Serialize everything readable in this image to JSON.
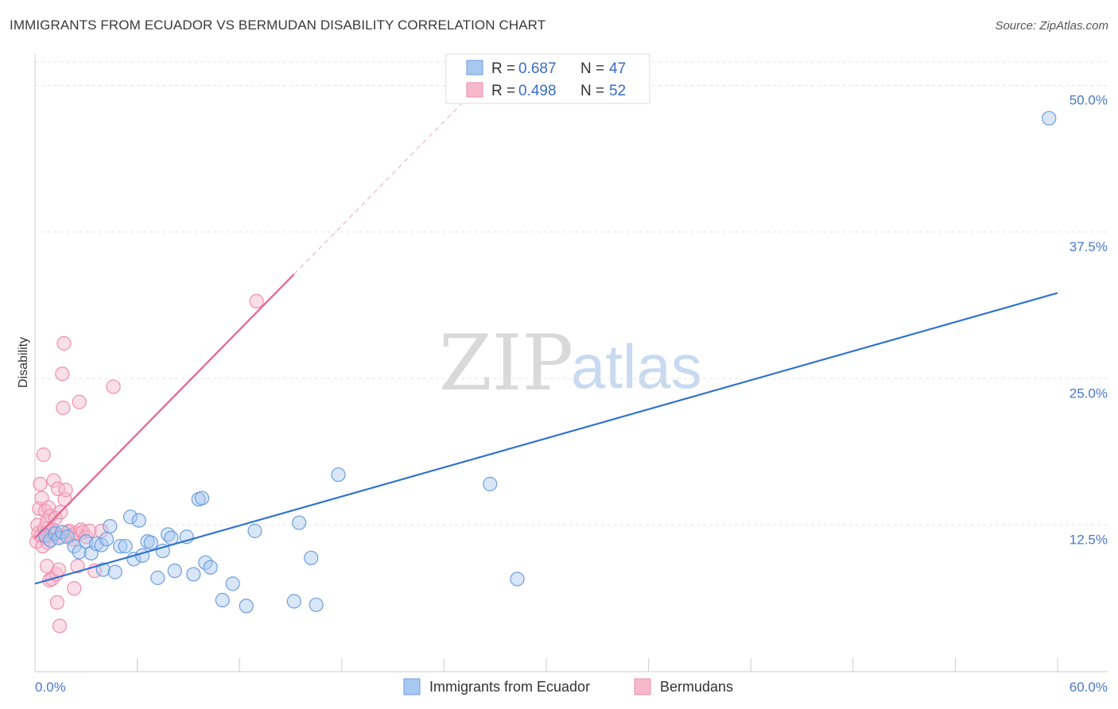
{
  "title": "IMMIGRANTS FROM ECUADOR VS BERMUDAN DISABILITY CORRELATION CHART",
  "source": "Source: ZipAtlas.com",
  "watermark": {
    "zip": "ZIP",
    "atlas": "atlas"
  },
  "colors": {
    "blue_fill": "#a9c8f0",
    "blue_stroke": "#6d9ee0",
    "blue_line": "#2f72d0",
    "pink_fill": "#f7b8cb",
    "pink_stroke": "#ee8fae",
    "pink_line": "#e8618c",
    "grid": "#e4e4e4",
    "axis_label": "#4a78c9"
  },
  "legend": {
    "rows": [
      {
        "r_label": "R = ",
        "r_value": "0.687",
        "n_label": "N = ",
        "n_value": "47"
      },
      {
        "r_label": "R = ",
        "r_value": "0.498",
        "n_label": "N = ",
        "n_value": "52"
      }
    ]
  },
  "chart_data": {
    "type": "scatter",
    "title": "IMMIGRANTS FROM ECUADOR VS BERMUDAN DISABILITY CORRELATION CHART",
    "xlabel": "",
    "ylabel": "Disability",
    "xlim": [
      0,
      60
    ],
    "ylim": [
      0,
      52
    ],
    "x_tick_labels": [
      "0.0%",
      "60.0%"
    ],
    "y_ticks": [
      12.5,
      25.0,
      37.5,
      50.0
    ],
    "y_tick_labels": [
      "12.5%",
      "25.0%",
      "37.5%",
      "50.0%"
    ],
    "legend_position": "top-center",
    "series": [
      {
        "name": "Immigrants from Ecuador",
        "color": "blue",
        "R": 0.687,
        "N": 47,
        "trend": {
          "x": [
            0,
            60
          ],
          "y": [
            7.5,
            32.3
          ],
          "dashed_extension": null
        },
        "points": [
          [
            0.6,
            11.6
          ],
          [
            0.9,
            11.2
          ],
          [
            1.2,
            11.8
          ],
          [
            1.4,
            11.4
          ],
          [
            1.6,
            11.9
          ],
          [
            1.9,
            11.5
          ],
          [
            2.3,
            10.7
          ],
          [
            2.6,
            10.2
          ],
          [
            3.0,
            11.1
          ],
          [
            3.3,
            10.1
          ],
          [
            3.6,
            10.9
          ],
          [
            3.9,
            10.8
          ],
          [
            4.0,
            8.7
          ],
          [
            4.2,
            11.3
          ],
          [
            4.4,
            12.4
          ],
          [
            4.7,
            8.5
          ],
          [
            5.0,
            10.7
          ],
          [
            5.3,
            10.7
          ],
          [
            5.6,
            13.2
          ],
          [
            5.8,
            9.6
          ],
          [
            6.1,
            12.9
          ],
          [
            6.3,
            9.9
          ],
          [
            6.6,
            11.1
          ],
          [
            6.8,
            11.0
          ],
          [
            7.2,
            8.0
          ],
          [
            7.5,
            10.3
          ],
          [
            7.8,
            11.7
          ],
          [
            8.0,
            11.4
          ],
          [
            8.2,
            8.6
          ],
          [
            8.9,
            11.5
          ],
          [
            9.3,
            8.3
          ],
          [
            9.6,
            14.7
          ],
          [
            9.8,
            14.8
          ],
          [
            10.0,
            9.3
          ],
          [
            10.3,
            8.9
          ],
          [
            11.0,
            6.1
          ],
          [
            11.6,
            7.5
          ],
          [
            12.4,
            5.6
          ],
          [
            12.9,
            12.0
          ],
          [
            15.2,
            6.0
          ],
          [
            15.5,
            12.7
          ],
          [
            16.2,
            9.7
          ],
          [
            16.5,
            5.7
          ],
          [
            17.8,
            16.8
          ],
          [
            26.7,
            16.0
          ],
          [
            28.3,
            7.9
          ],
          [
            59.5,
            47.2
          ]
        ]
      },
      {
        "name": "Bermudans",
        "color": "pink",
        "R": 0.498,
        "N": 52,
        "trend": {
          "x": [
            0,
            15.2
          ],
          "y": [
            11.4,
            33.9
          ],
          "dashed_extension": {
            "x": [
              15.2,
              25.0
            ],
            "y": [
              33.9,
              48.4
            ]
          }
        },
        "points": [
          [
            0.1,
            11.1
          ],
          [
            0.15,
            12.5
          ],
          [
            0.2,
            11.8
          ],
          [
            0.25,
            13.9
          ],
          [
            0.3,
            16.0
          ],
          [
            0.35,
            11.6
          ],
          [
            0.4,
            14.8
          ],
          [
            0.45,
            10.7
          ],
          [
            0.5,
            18.5
          ],
          [
            0.55,
            12.2
          ],
          [
            0.6,
            13.7
          ],
          [
            0.65,
            11.4
          ],
          [
            0.7,
            12.8
          ],
          [
            0.7,
            9.0
          ],
          [
            0.75,
            11.0
          ],
          [
            0.8,
            14.0
          ],
          [
            0.85,
            7.8
          ],
          [
            0.9,
            13.3
          ],
          [
            0.95,
            11.9
          ],
          [
            1.0,
            7.9
          ],
          [
            1.05,
            12.1
          ],
          [
            1.1,
            16.3
          ],
          [
            1.15,
            11.7
          ],
          [
            1.2,
            13.1
          ],
          [
            1.25,
            8.3
          ],
          [
            1.3,
            5.9
          ],
          [
            1.35,
            15.6
          ],
          [
            1.4,
            8.7
          ],
          [
            1.45,
            3.9
          ],
          [
            1.5,
            13.6
          ],
          [
            1.55,
            11.5
          ],
          [
            1.6,
            25.4
          ],
          [
            1.65,
            22.5
          ],
          [
            1.7,
            28.0
          ],
          [
            1.75,
            14.7
          ],
          [
            1.8,
            15.5
          ],
          [
            1.9,
            11.9
          ],
          [
            2.0,
            12.0
          ],
          [
            2.1,
            11.6
          ],
          [
            2.2,
            11.3
          ],
          [
            2.3,
            7.1
          ],
          [
            2.4,
            11.8
          ],
          [
            2.5,
            9.0
          ],
          [
            2.6,
            23.0
          ],
          [
            2.7,
            12.1
          ],
          [
            2.8,
            11.9
          ],
          [
            3.0,
            11.5
          ],
          [
            3.2,
            12.0
          ],
          [
            3.5,
            8.6
          ],
          [
            3.9,
            12.0
          ],
          [
            4.6,
            24.3
          ],
          [
            13.0,
            31.6
          ]
        ]
      }
    ]
  },
  "bottom_legend": [
    {
      "label": "Immigrants from Ecuador",
      "color": "blue"
    },
    {
      "label": "Bermudans",
      "color": "pink"
    }
  ]
}
